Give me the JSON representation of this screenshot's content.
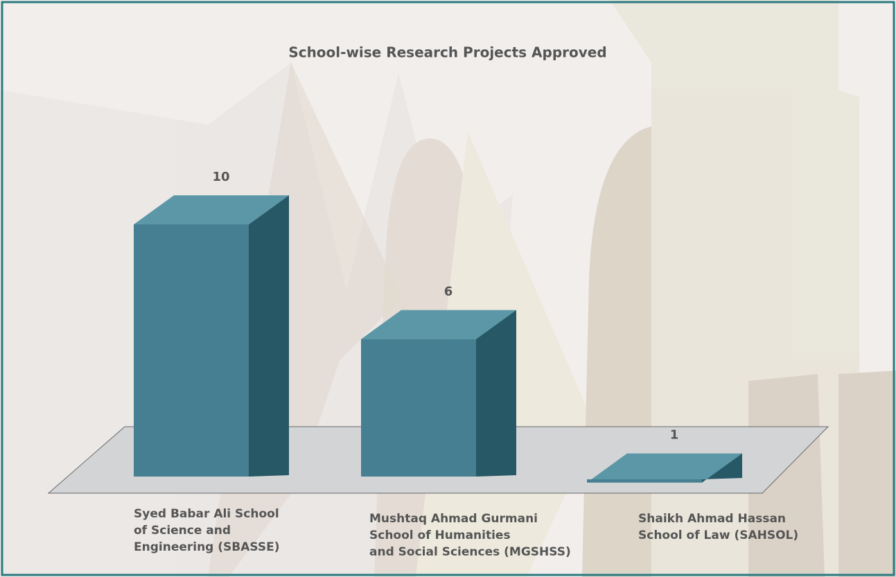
{
  "chart_data": {
    "type": "bar3d",
    "title": "School-wise Research Projects Approved",
    "categories": [
      "Syed Babar Ali School\nof Science and\nEngineering (SBASSE)",
      "Mushtaq Ahmad Gurmani\nSchool of Humanities\nand Social Sciences (MGSHSS)",
      "Shaikh Ahmad Hassan\nSchool of Law (SAHSOL)"
    ],
    "values": [
      10,
      6,
      1
    ],
    "color": "#467f91"
  }
}
